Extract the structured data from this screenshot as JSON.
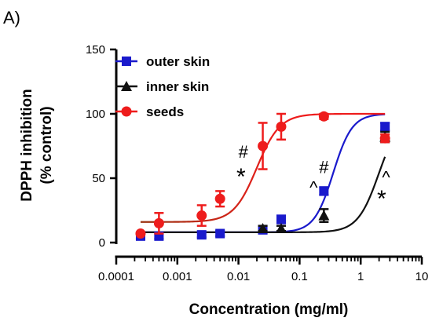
{
  "chart_data": {
    "type": "scatter",
    "panel_label": "A)",
    "xlabel": "Concentration (mg/ml)",
    "ylabel_lines": [
      "DPPH inhibition",
      "(% control)"
    ],
    "x_scale": "log",
    "xlim": [
      0.0001,
      10
    ],
    "ylim": [
      0,
      150
    ],
    "x_ticks": [
      "0.0001",
      "0.001",
      "0.01",
      "0.1",
      "1",
      "10"
    ],
    "y_ticks": [
      "0",
      "50",
      "100",
      "150"
    ],
    "legend_position": "top-left",
    "series": [
      {
        "name": "outer skin",
        "color": "#1a1acc",
        "marker": "square",
        "fit": {
          "bottom": 8,
          "top": 100,
          "log_ec50": -0.45,
          "hill": 2.8
        },
        "points": [
          {
            "x": 0.00025,
            "y": 5,
            "err": 2
          },
          {
            "x": 0.0005,
            "y": 5,
            "err": 2
          },
          {
            "x": 0.0025,
            "y": 6,
            "err": 2
          },
          {
            "x": 0.005,
            "y": 7,
            "err": 2
          },
          {
            "x": 0.025,
            "y": 10,
            "err": 3
          },
          {
            "x": 0.05,
            "y": 18,
            "err": 3
          },
          {
            "x": 0.25,
            "y": 40,
            "err": 3
          },
          {
            "x": 2.5,
            "y": 90,
            "err": 3
          }
        ]
      },
      {
        "name": "inner skin",
        "color": "#111111",
        "marker": "triangle",
        "fit": {
          "bottom": 8,
          "top": 100,
          "log_ec50": 0.3,
          "hill": 2.5
        },
        "points": [
          {
            "x": 0.025,
            "y": 11,
            "err": 2
          },
          {
            "x": 0.05,
            "y": 11,
            "err": 2
          },
          {
            "x": 0.25,
            "y": 21,
            "err": 5
          },
          {
            "x": 2.5,
            "y": 82,
            "err": 4
          }
        ]
      },
      {
        "name": "seeds",
        "color": "#ee1c1c",
        "marker": "circle",
        "fit": {
          "bottom": 16,
          "top": 100,
          "log_ec50": -1.7,
          "hill": 2.3,
          "start_color": "#993311",
          "end_color": "#ee1c1c"
        },
        "points": [
          {
            "x": 0.00025,
            "y": 7,
            "err": 0
          },
          {
            "x": 0.0005,
            "y": 15,
            "err": 8
          },
          {
            "x": 0.0025,
            "y": 21,
            "err": 8
          },
          {
            "x": 0.005,
            "y": 34,
            "err": 6
          },
          {
            "x": 0.025,
            "y": 75,
            "err": 18
          },
          {
            "x": 0.05,
            "y": 90,
            "err": 10
          },
          {
            "x": 0.25,
            "y": 98,
            "err": 2
          },
          {
            "x": 2.5,
            "y": 81,
            "err": 3
          }
        ]
      }
    ],
    "annotations": [
      {
        "text": "#",
        "x": 0.012,
        "y": 66,
        "size": 22
      },
      {
        "text": "*",
        "x": 0.011,
        "y": 45,
        "size": 30
      },
      {
        "text": "#",
        "x": 0.25,
        "y": 54,
        "size": 22
      },
      {
        "text": "^",
        "x": 0.17,
        "y": 38,
        "size": 22
      },
      {
        "text": "^",
        "x": 2.6,
        "y": 46,
        "size": 22
      },
      {
        "text": "*",
        "x": 2.2,
        "y": 28,
        "size": 30
      }
    ]
  }
}
